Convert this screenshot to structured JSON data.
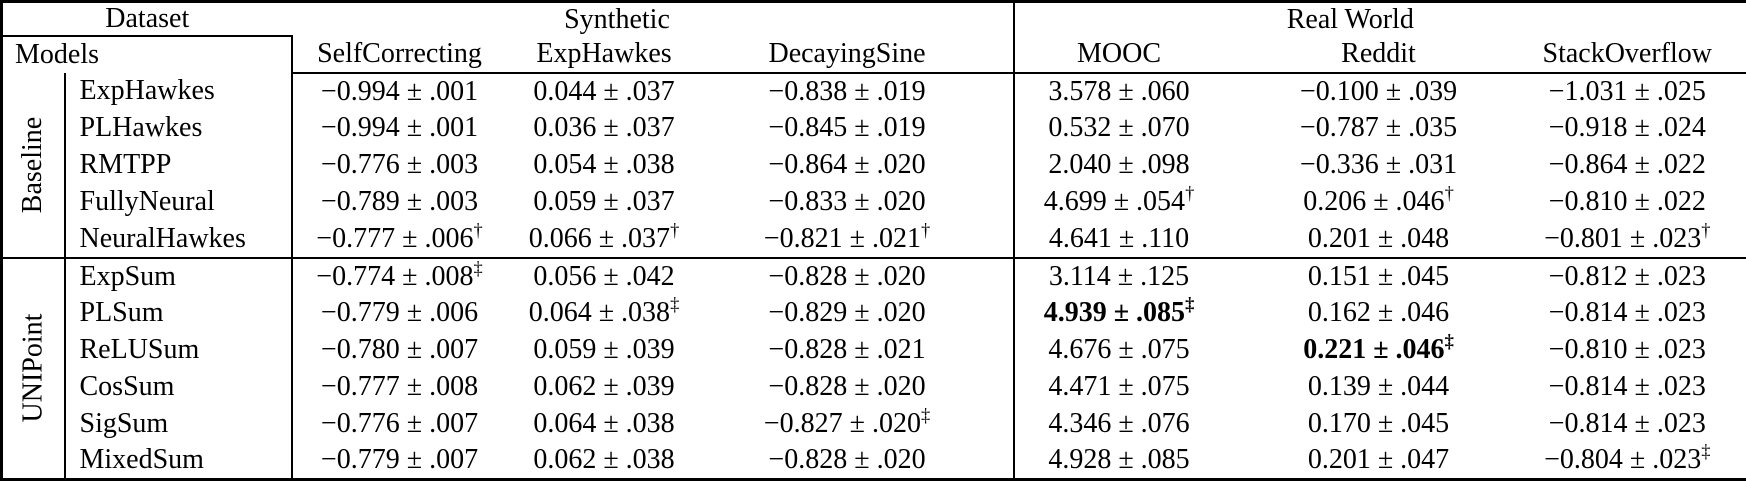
{
  "colors": {
    "text": "#000000",
    "background": "#ffffff",
    "border": "#000000"
  },
  "table": {
    "header": {
      "dataset_label": "Dataset",
      "models_label": "Models",
      "synthetic_label": "Synthetic",
      "realworld_label": "Real World",
      "columns": [
        "SelfCorrecting",
        "ExpHawkes",
        "DecayingSine",
        "MOOC",
        "Reddit",
        "StackOverflow"
      ]
    },
    "sections": [
      {
        "group_label": "Baseline",
        "rows": [
          {
            "model": "ExpHawkes",
            "cells": [
              {
                "value": "−0.994 ± .001",
                "sup": "",
                "bold": false
              },
              {
                "value": "0.044 ± .037",
                "sup": "",
                "bold": false
              },
              {
                "value": "−0.838 ± .019",
                "sup": "",
                "bold": false
              },
              {
                "value": "3.578 ± .060",
                "sup": "",
                "bold": false
              },
              {
                "value": "−0.100 ± .039",
                "sup": "",
                "bold": false
              },
              {
                "value": "−1.031 ± .025",
                "sup": "",
                "bold": false
              }
            ]
          },
          {
            "model": "PLHawkes",
            "cells": [
              {
                "value": "−0.994 ± .001",
                "sup": "",
                "bold": false
              },
              {
                "value": "0.036 ± .037",
                "sup": "",
                "bold": false
              },
              {
                "value": "−0.845 ± .019",
                "sup": "",
                "bold": false
              },
              {
                "value": "0.532 ± .070",
                "sup": "",
                "bold": false
              },
              {
                "value": "−0.787 ± .035",
                "sup": "",
                "bold": false
              },
              {
                "value": "−0.918 ± .024",
                "sup": "",
                "bold": false
              }
            ]
          },
          {
            "model": "RMTPP",
            "cells": [
              {
                "value": "−0.776 ± .003",
                "sup": "",
                "bold": false
              },
              {
                "value": "0.054 ± .038",
                "sup": "",
                "bold": false
              },
              {
                "value": "−0.864 ± .020",
                "sup": "",
                "bold": false
              },
              {
                "value": "2.040 ± .098",
                "sup": "",
                "bold": false
              },
              {
                "value": "−0.336 ± .031",
                "sup": "",
                "bold": false
              },
              {
                "value": "−0.864 ± .022",
                "sup": "",
                "bold": false
              }
            ]
          },
          {
            "model": "FullyNeural",
            "cells": [
              {
                "value": "−0.789 ± .003",
                "sup": "",
                "bold": false
              },
              {
                "value": "0.059 ± .037",
                "sup": "",
                "bold": false
              },
              {
                "value": "−0.833 ± .020",
                "sup": "",
                "bold": false
              },
              {
                "value": "4.699 ± .054",
                "sup": "†",
                "bold": false
              },
              {
                "value": "0.206 ± .046",
                "sup": "†",
                "bold": false
              },
              {
                "value": "−0.810 ± .022",
                "sup": "",
                "bold": false
              }
            ]
          },
          {
            "model": "NeuralHawkes",
            "cells": [
              {
                "value": "−0.777 ± .006",
                "sup": "†",
                "bold": false
              },
              {
                "value": "0.066 ± .037",
                "sup": "†",
                "bold": false
              },
              {
                "value": "−0.821 ± .021",
                "sup": "†",
                "bold": false
              },
              {
                "value": "4.641 ± .110",
                "sup": "",
                "bold": false
              },
              {
                "value": "0.201 ± .048",
                "sup": "",
                "bold": false
              },
              {
                "value": "−0.801 ± .023",
                "sup": "†",
                "bold": false
              }
            ]
          }
        ]
      },
      {
        "group_label": "UNIPoint",
        "rows": [
          {
            "model": "ExpSum",
            "cells": [
              {
                "value": "−0.774 ± .008",
                "sup": "‡",
                "bold": false
              },
              {
                "value": "0.056 ± .042",
                "sup": "",
                "bold": false
              },
              {
                "value": "−0.828 ± .020",
                "sup": "",
                "bold": false
              },
              {
                "value": "3.114 ± .125",
                "sup": "",
                "bold": false
              },
              {
                "value": "0.151 ± .045",
                "sup": "",
                "bold": false
              },
              {
                "value": "−0.812 ± .023",
                "sup": "",
                "bold": false
              }
            ]
          },
          {
            "model": "PLSum",
            "cells": [
              {
                "value": "−0.779 ± .006",
                "sup": "",
                "bold": false
              },
              {
                "value": "0.064 ± .038",
                "sup": "‡",
                "bold": false
              },
              {
                "value": "−0.829 ± .020",
                "sup": "",
                "bold": false
              },
              {
                "value": "4.939 ± .085",
                "sup": "‡",
                "bold": true
              },
              {
                "value": "0.162 ± .046",
                "sup": "",
                "bold": false
              },
              {
                "value": "−0.814 ± .023",
                "sup": "",
                "bold": false
              }
            ]
          },
          {
            "model": "ReLUSum",
            "cells": [
              {
                "value": "−0.780 ± .007",
                "sup": "",
                "bold": false
              },
              {
                "value": "0.059 ± .039",
                "sup": "",
                "bold": false
              },
              {
                "value": "−0.828 ± .021",
                "sup": "",
                "bold": false
              },
              {
                "value": "4.676 ± .075",
                "sup": "",
                "bold": false
              },
              {
                "value": "0.221 ± .046",
                "sup": "‡",
                "bold": true
              },
              {
                "value": "−0.810 ± .023",
                "sup": "",
                "bold": false
              }
            ]
          },
          {
            "model": "CosSum",
            "cells": [
              {
                "value": "−0.777 ± .008",
                "sup": "",
                "bold": false
              },
              {
                "value": "0.062 ± .039",
                "sup": "",
                "bold": false
              },
              {
                "value": "−0.828 ± .020",
                "sup": "",
                "bold": false
              },
              {
                "value": "4.471 ± .075",
                "sup": "",
                "bold": false
              },
              {
                "value": "0.139 ± .044",
                "sup": "",
                "bold": false
              },
              {
                "value": "−0.814 ± .023",
                "sup": "",
                "bold": false
              }
            ]
          },
          {
            "model": "SigSum",
            "cells": [
              {
                "value": "−0.776 ± .007",
                "sup": "",
                "bold": false
              },
              {
                "value": "0.064 ± .038",
                "sup": "",
                "bold": false
              },
              {
                "value": "−0.827 ± .020",
                "sup": "‡",
                "bold": false
              },
              {
                "value": "4.346 ± .076",
                "sup": "",
                "bold": false
              },
              {
                "value": "0.170 ± .045",
                "sup": "",
                "bold": false
              },
              {
                "value": "−0.814 ± .023",
                "sup": "",
                "bold": false
              }
            ]
          },
          {
            "model": "MixedSum",
            "cells": [
              {
                "value": "−0.779 ± .007",
                "sup": "",
                "bold": false
              },
              {
                "value": "0.062 ± .038",
                "sup": "",
                "bold": false
              },
              {
                "value": "−0.828 ± .020",
                "sup": "",
                "bold": false
              },
              {
                "value": "4.928 ± .085",
                "sup": "",
                "bold": false
              },
              {
                "value": "0.201 ± .047",
                "sup": "",
                "bold": false
              },
              {
                "value": "−0.804 ± .023",
                "sup": "‡",
                "bold": false
              }
            ]
          }
        ]
      }
    ]
  }
}
